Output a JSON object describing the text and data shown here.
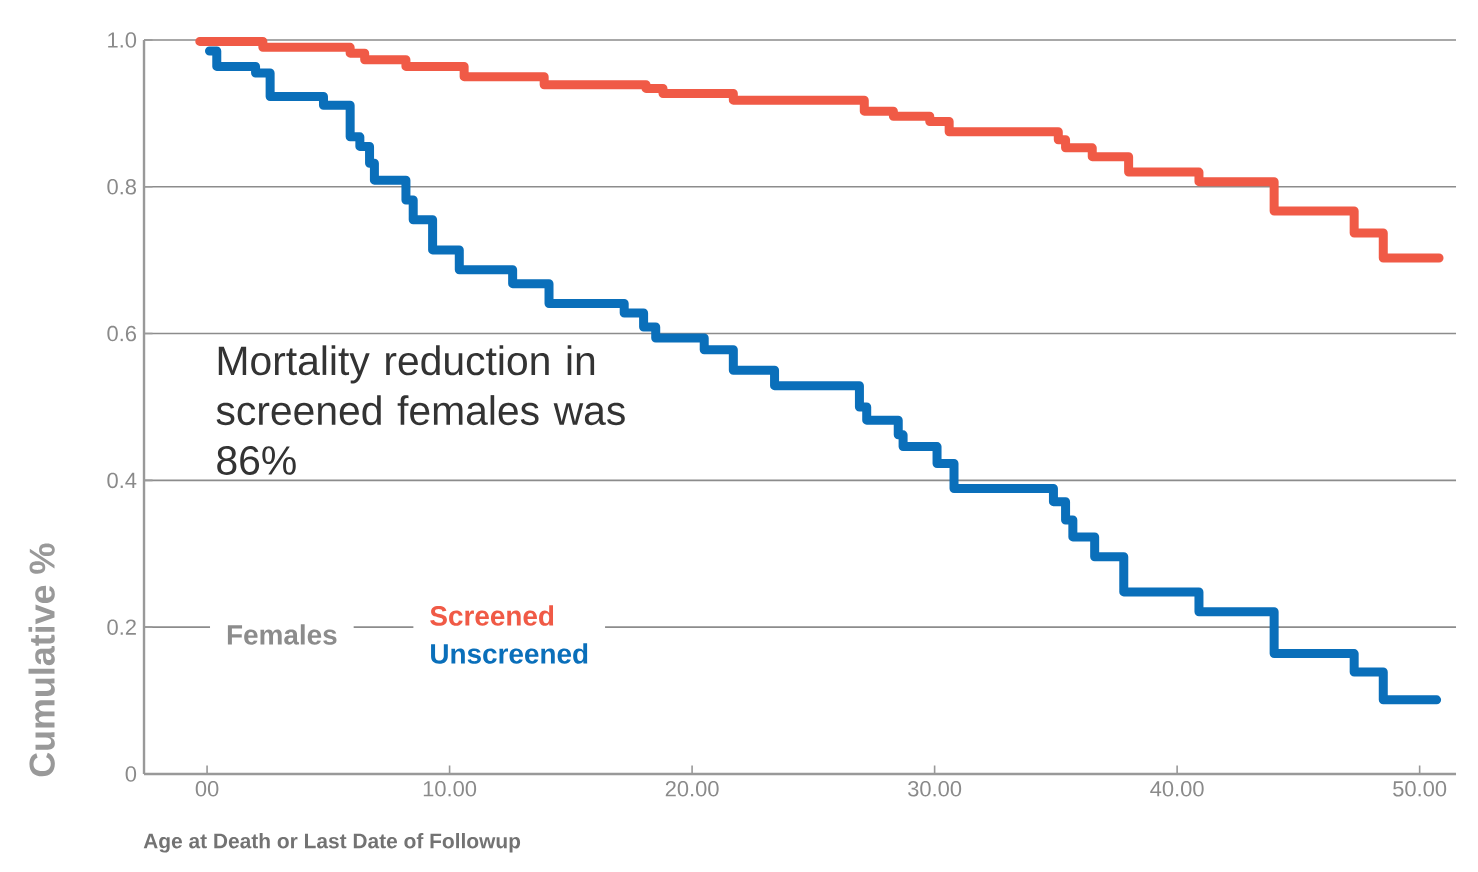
{
  "chart_data": {
    "type": "step",
    "xlabel": "Age at Death or Last Date of Followup",
    "ylabel": "Cumulative %",
    "legend_title": "Females",
    "annotations": [
      "Mortality reduction in screened females was 86%"
    ],
    "xlim": [
      -2.6,
      51.5
    ],
    "ylim": [
      0,
      1
    ],
    "xticks": [
      {
        "value": 0,
        "label": "00"
      },
      {
        "value": 10,
        "label": "10.00"
      },
      {
        "value": 20,
        "label": "20.00"
      },
      {
        "value": 30,
        "label": "30.00"
      },
      {
        "value": 40,
        "label": "40.00"
      },
      {
        "value": 50,
        "label": "50.00"
      }
    ],
    "yticks": [
      0,
      0.2,
      0.4,
      0.6,
      0.8,
      {
        "value": 1,
        "label": "1.0"
      }
    ],
    "grid": "y",
    "legend": "bottom left",
    "line_style": "solid",
    "marker": "none",
    "series": [
      {
        "name": "Screened",
        "color": "#f05a46",
        "x": [
          -0.3,
          2.3,
          5.9,
          6.5,
          8.2,
          10.6,
          13.9,
          18.1,
          18.8,
          21.7,
          27.1,
          28.3,
          29.8,
          30.6,
          35.1,
          35.4,
          36.5,
          38.0,
          40.9,
          44.0,
          47.3,
          48.5,
          50.8
        ],
        "values": [
          0.998,
          0.99,
          0.982,
          0.973,
          0.964,
          0.95,
          0.939,
          0.934,
          0.927,
          0.918,
          0.903,
          0.896,
          0.889,
          0.875,
          0.864,
          0.853,
          0.841,
          0.82,
          0.807,
          0.767,
          0.737,
          0.703,
          0.703
        ]
      },
      {
        "name": "Unscreened",
        "color": "#0a6fba",
        "x": [
          0.1,
          0.4,
          2.0,
          2.6,
          4.8,
          5.9,
          6.3,
          6.7,
          6.9,
          8.2,
          8.5,
          9.3,
          10.4,
          12.6,
          14.1,
          17.2,
          18.0,
          18.5,
          20.5,
          21.7,
          23.4,
          26.9,
          27.2,
          28.5,
          28.7,
          30.1,
          30.8,
          34.9,
          35.4,
          35.7,
          36.6,
          37.8,
          40.9,
          44.0,
          47.3,
          48.5,
          50.7
        ],
        "values": [
          0.985,
          0.964,
          0.955,
          0.923,
          0.911,
          0.868,
          0.855,
          0.832,
          0.809,
          0.782,
          0.755,
          0.714,
          0.687,
          0.668,
          0.641,
          0.628,
          0.609,
          0.594,
          0.578,
          0.55,
          0.529,
          0.5,
          0.482,
          0.462,
          0.446,
          0.423,
          0.389,
          0.371,
          0.346,
          0.323,
          0.296,
          0.248,
          0.221,
          0.164,
          0.139,
          0.101,
          0.101
        ]
      }
    ]
  }
}
